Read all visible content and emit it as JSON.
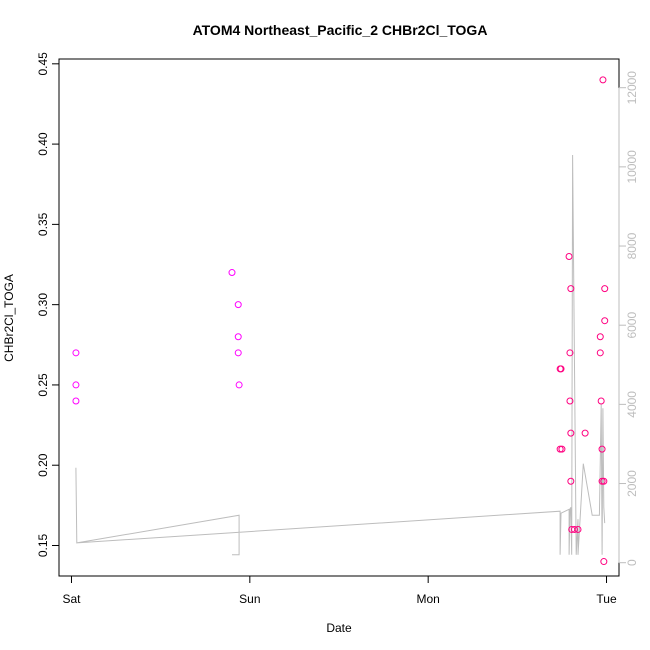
{
  "chart_data": {
    "type": "scatter",
    "title": "ATOM4 Northeast_Pacific_2 CHBr2Cl_TOGA",
    "xlabel": "Date",
    "ylabel": "CHBr2Cl_TOGA",
    "x_ticks": [
      "Sat",
      "Sun",
      "Mon",
      "Tue"
    ],
    "xlim": [
      -0.07,
      3.07
    ],
    "ylim": [
      0.131,
      0.453
    ],
    "y_ticks": [
      0.15,
      0.2,
      0.25,
      0.3,
      0.35,
      0.4,
      0.45
    ],
    "y_tick_labels": [
      "0.15",
      "0.20",
      "0.25",
      "0.30",
      "0.35",
      "0.40",
      "0.45"
    ],
    "y2lim": [
      -336,
      12725
    ],
    "y2_ticks": [
      0,
      2000,
      4000,
      6000,
      8000,
      10000,
      12000
    ],
    "y2_tick_labels": [
      "0",
      "2000",
      "4000",
      "6000",
      "8000",
      "10000",
      "12000"
    ],
    "colors": {
      "marker_magenta": "#ff00ff",
      "marker_pink": "#ff0080",
      "altitude_line": "#bdbdbd",
      "right_axis": "#bdbdbd"
    },
    "series": [
      {
        "x": [
          0.025,
          0.025,
          0.025,
          0.9,
          0.935,
          0.935,
          0.935,
          0.94,
          2.74,
          2.74,
          2.745,
          2.75,
          2.79,
          2.795,
          2.795,
          2.8,
          2.8,
          2.8,
          2.805,
          2.82,
          2.84,
          2.88,
          2.965,
          2.965,
          2.97,
          2.975,
          2.975,
          2.98,
          2.985,
          2.985,
          2.99,
          2.99
        ],
        "y": [
          0.27,
          0.25,
          0.24,
          0.32,
          0.3,
          0.28,
          0.27,
          0.25,
          0.26,
          0.21,
          0.26,
          0.21,
          0.33,
          0.27,
          0.24,
          0.31,
          0.22,
          0.19,
          0.16,
          0.16,
          0.16,
          0.22,
          0.28,
          0.27,
          0.24,
          0.21,
          0.19,
          0.44,
          0.19,
          0.14,
          0.31,
          0.29
        ],
        "colors": [
          "#ff00ff",
          "#ff00ff",
          "#ff00ff",
          "#ff00ff",
          "#ff00ff",
          "#ff00ff",
          "#ff00ff",
          "#ff00ff",
          "#ff0080",
          "#ff0080",
          "#ff0080",
          "#ff0080",
          "#ff0080",
          "#ff0080",
          "#ff0080",
          "#ff0080",
          "#ff0080",
          "#ff0080",
          "#ff0080",
          "#ff0080",
          "#ff0080",
          "#ff0080",
          "#ff0080",
          "#ff0080",
          "#ff0080",
          "#ff0080",
          "#ff0080",
          "#ff0080",
          "#ff0080",
          "#ff0080",
          "#ff0080",
          "#ff0080"
        ]
      },
      {
        "axis": "right",
        "x": [
          0.025,
          0.03,
          0.94,
          0.94,
          0.9,
          0.94,
          0.94,
          0.03,
          2.74,
          2.74,
          2.745,
          2.79,
          2.79,
          2.795,
          2.8,
          2.805,
          2.81,
          2.83,
          2.84,
          2.84,
          2.87,
          2.92,
          2.96,
          2.97,
          2.975,
          2.98,
          2.985,
          2.99
        ],
        "y": [
          2400,
          500,
          1200,
          200,
          200,
          200,
          1200,
          500,
          1300,
          200,
          1250,
          1350,
          200,
          1350,
          1400,
          200,
          10300,
          200,
          1100,
          200,
          2500,
          1200,
          1200,
          4000,
          200,
          3900,
          1400,
          1000
        ]
      }
    ]
  }
}
